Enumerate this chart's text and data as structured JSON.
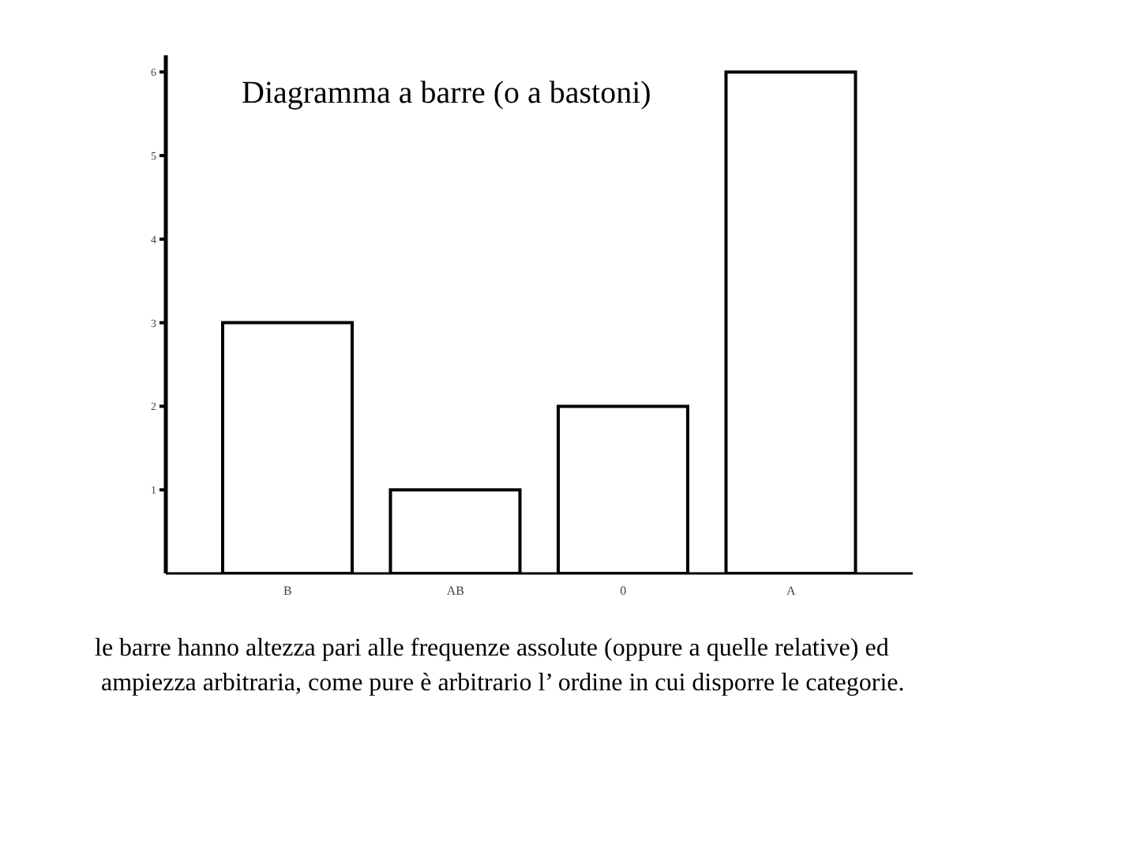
{
  "chart_data": {
    "type": "bar",
    "title": "Diagramma a barre (o a bastoni)",
    "categories": [
      "B",
      "AB",
      "0",
      "A"
    ],
    "values": [
      3,
      1,
      2,
      6
    ],
    "color": "#ffffff",
    "ylim": [
      0,
      6.2
    ],
    "yticks": [
      1,
      2,
      3,
      4,
      5,
      6
    ],
    "grid": false,
    "legend": false,
    "annotations": [
      "le barre hanno altezza pari alle frequenze assolute (oppure a quelle relative) ed",
      "ampiezza arbitraria, come pure è arbitrario l’ ordine in cui disporre le categorie."
    ]
  }
}
